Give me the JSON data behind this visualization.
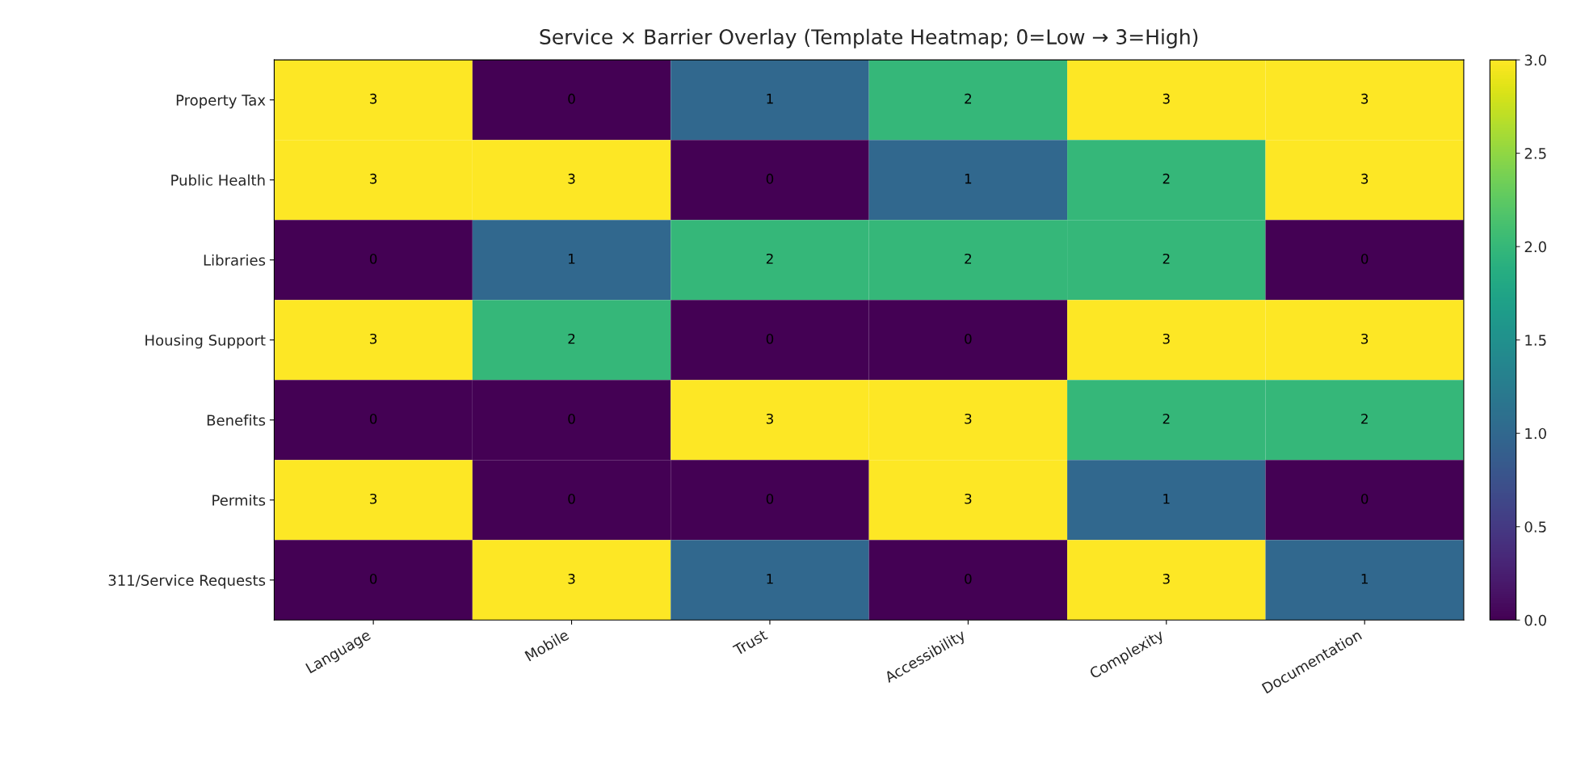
{
  "chart_data": {
    "type": "heatmap",
    "title": "Service × Barrier Overlay (Template Heatmap; 0=Low → 3=High)",
    "categories": [
      "Language",
      "Mobile",
      "Trust",
      "Accessibility",
      "Complexity",
      "Documentation"
    ],
    "y_categories": [
      "Property Tax",
      "Public Health",
      "Libraries",
      "Housing Support",
      "Benefits",
      "Permits",
      "311/Service Requests"
    ],
    "cells": [
      [
        3,
        0,
        1,
        2,
        3,
        3
      ],
      [
        3,
        3,
        0,
        1,
        2,
        3
      ],
      [
        0,
        1,
        2,
        2,
        2,
        0
      ],
      [
        3,
        2,
        0,
        0,
        3,
        3
      ],
      [
        0,
        0,
        3,
        3,
        2,
        2
      ],
      [
        3,
        0,
        0,
        3,
        1,
        0
      ],
      [
        0,
        3,
        1,
        0,
        3,
        1
      ]
    ],
    "data_labels": true,
    "clim": [
      0,
      3
    ],
    "cticks": [
      {
        "value": 0,
        "label": "0.0"
      },
      {
        "value": 0.5,
        "label": "0.5"
      },
      {
        "value": 1,
        "label": "1.0"
      },
      {
        "value": 1.5,
        "label": "1.5"
      },
      {
        "value": 2,
        "label": "2.0"
      },
      {
        "value": 2.5,
        "label": "2.5"
      },
      {
        "value": 3,
        "label": "3.0"
      }
    ]
  }
}
